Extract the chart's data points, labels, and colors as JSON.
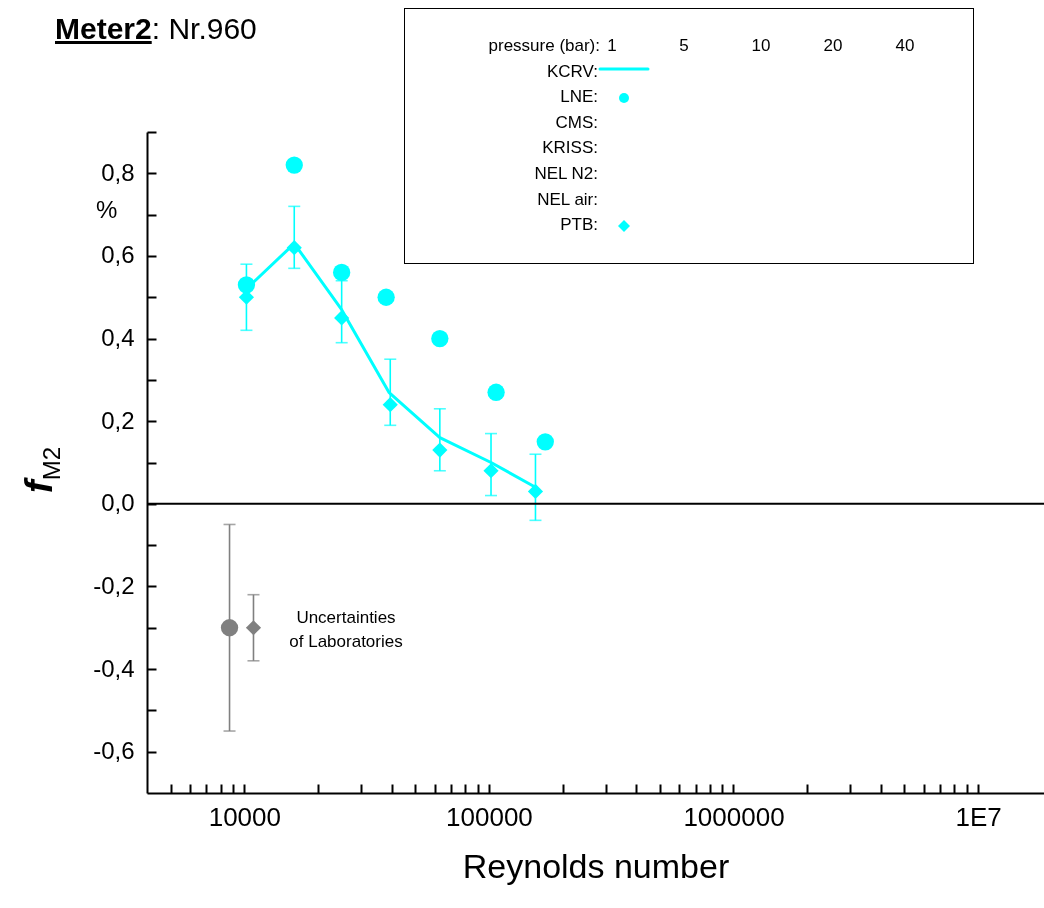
{
  "chart_data": {
    "type": "scatter",
    "title": "Meter2: Nr.960",
    "xlabel": "Reynolds number",
    "ylabel": "f$_{M2}$",
    "legend_title": "pressure (bar):",
    "legend": "top",
    "log": "x",
    "xlim": [
      4000,
      18600000
    ],
    "ylim": [
      -0.7,
      0.9
    ],
    "xticks": [
      {
        "value": 5000,
        "label": null
      },
      {
        "value": 6000,
        "label": null
      },
      {
        "value": 7000,
        "label": null
      },
      {
        "value": 8000,
        "label": null
      },
      {
        "value": 9000,
        "label": null
      },
      10000,
      {
        "value": 20000,
        "label": null
      },
      {
        "value": 30000,
        "label": null
      },
      {
        "value": 40000,
        "label": null
      },
      {
        "value": 50000,
        "label": null
      },
      {
        "value": 60000,
        "label": null
      },
      {
        "value": 70000,
        "label": null
      },
      {
        "value": 80000,
        "label": null
      },
      {
        "value": 90000,
        "label": null
      },
      100000,
      {
        "value": 200000,
        "label": null
      },
      {
        "value": 300000,
        "label": null
      },
      {
        "value": 400000,
        "label": null
      },
      {
        "value": 500000,
        "label": null
      },
      {
        "value": 600000,
        "label": null
      },
      {
        "value": 700000,
        "label": null
      },
      {
        "value": 800000,
        "label": null
      },
      {
        "value": 900000,
        "label": null
      },
      1000000,
      {
        "value": 2000000,
        "label": null
      },
      {
        "value": 3000000,
        "label": null
      },
      {
        "value": 4000000,
        "label": null
      },
      {
        "value": 5000000,
        "label": null
      },
      {
        "value": 6000000,
        "label": null
      },
      {
        "value": 7000000,
        "label": null
      },
      {
        "value": 8000000,
        "label": null
      },
      {
        "value": 9000000,
        "label": null
      },
      {
        "value": 10000000,
        "label": "1E7"
      }
    ],
    "yticks": [
      {
        "value": -0.6,
        "label": "-0,6"
      },
      {
        "value": -0.5,
        "label": null
      },
      {
        "value": -0.4,
        "label": "-0,4"
      },
      {
        "value": -0.3,
        "label": null
      },
      {
        "value": -0.2,
        "label": "-0,2"
      },
      {
        "value": -0.1,
        "label": null
      },
      {
        "value": 0,
        "label": "0,0"
      },
      {
        "value": 0.1,
        "label": null
      },
      {
        "value": 0.2,
        "label": "0,2"
      },
      {
        "value": 0.3,
        "label": null
      },
      {
        "value": 0.4,
        "label": "0,4"
      },
      {
        "value": 0.5,
        "label": null
      },
      {
        "value": 0.6,
        "label": "0,6"
      },
      {
        "value": 0.7,
        "label": null
      },
      {
        "value": 0.8,
        "label": "0,8"
      },
      {
        "value": 0.9,
        "label": null
      }
    ],
    "ref_lines": [
      {
        "axis": "y",
        "value": 0,
        "color": "#000000"
      }
    ],
    "annotations": [
      "%",
      "1",
      "5",
      "10",
      "20",
      "40",
      "Uncertainties\nof Laboratories"
    ],
    "series": [
      {
        "name": "KCRV:",
        "type": "line",
        "color": "#00ffff",
        "x": [
          10200,
          16000,
          25000,
          39000,
          63000,
          102000,
          155000
        ],
        "values": [
          0.52,
          0.63,
          0.47,
          0.27,
          0.16,
          0.1,
          0.04
        ]
      },
      {
        "name": "LNE:",
        "marker": "circle",
        "color": "#00ffff",
        "x": [
          10200,
          16000,
          25000,
          38000,
          63000,
          107000,
          170000
        ],
        "values": [
          0.53,
          0.82,
          0.56,
          0.5,
          0.4,
          0.27,
          0.15
        ]
      },
      {
        "name": "CMS:"
      },
      {
        "name": "KRISS:"
      },
      {
        "name": "NEL N2:"
      },
      {
        "name": "NEL air:"
      },
      {
        "name": "PTB:",
        "marker": "diamond",
        "color": "#00ffff",
        "x": [
          10200,
          16000,
          25000,
          39500,
          63000,
          102000,
          155000
        ],
        "values": [
          0.5,
          0.62,
          0.45,
          0.24,
          0.13,
          0.08,
          0.03
        ],
        "errors": [
          [
            0.42,
            0.58
          ],
          [
            0.57,
            0.72
          ],
          [
            0.39,
            0.54
          ],
          [
            0.19,
            0.35
          ],
          [
            0.08,
            0.23
          ],
          [
            0.02,
            0.17
          ],
          [
            -0.04,
            0.12
          ]
        ]
      },
      {
        "marker": "circle",
        "color": "#808080",
        "x": [
          8700
        ],
        "values": [
          -0.3
        ],
        "errors": [
          0.25
        ]
      },
      {
        "marker": "diamond",
        "color": "#808080",
        "x": [
          10900
        ],
        "values": [
          -0.3
        ],
        "errors": [
          0.08
        ]
      }
    ]
  }
}
